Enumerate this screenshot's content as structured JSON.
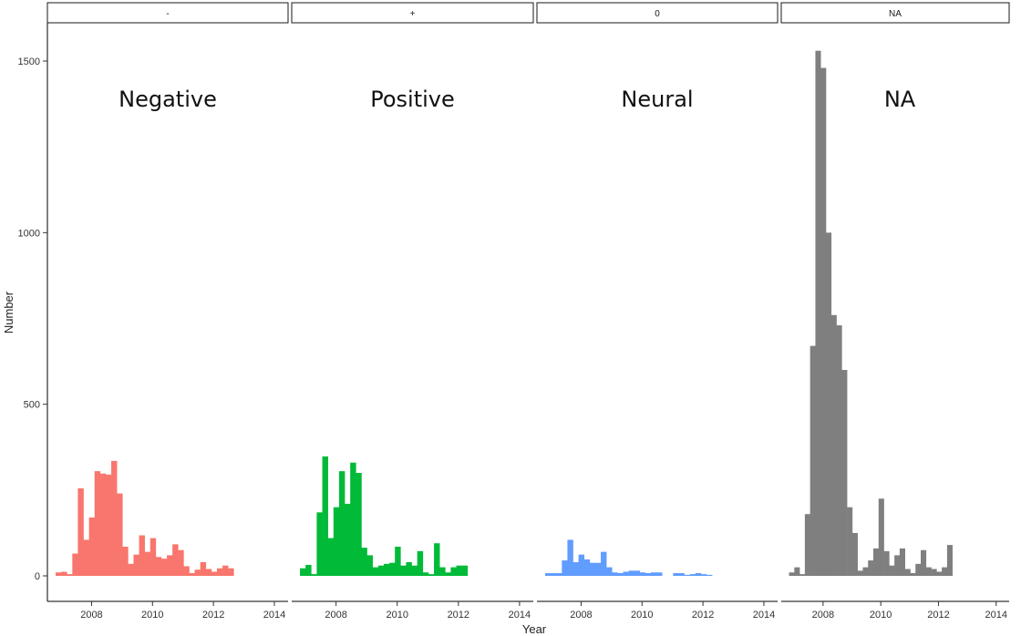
{
  "chart_data": {
    "type": "bar",
    "xlabel": "Year",
    "ylabel": "Number",
    "ylim": [
      0,
      1620
    ],
    "y_ticks": [
      0,
      500,
      1000,
      1500
    ],
    "xlim": [
      2006.55,
      2014.45
    ],
    "x_ticks": [
      2008,
      2010,
      2012,
      2014
    ],
    "bin_start": 2006.82,
    "bin_width": 0.1826,
    "facets": [
      {
        "strip_label": "-",
        "annotation": "Negative",
        "color": "#F8766D",
        "values": [
          10,
          12,
          5,
          65,
          255,
          105,
          170,
          305,
          298,
          295,
          335,
          240,
          85,
          35,
          62,
          118,
          70,
          110,
          55,
          50,
          60,
          92,
          75,
          28,
          8,
          18,
          40,
          20,
          12,
          22,
          30,
          22
        ]
      },
      {
        "strip_label": "+",
        "annotation": "Positive",
        "color": "#00BA38",
        "values": [
          22,
          32,
          5,
          185,
          348,
          110,
          200,
          305,
          210,
          330,
          300,
          82,
          60,
          25,
          30,
          35,
          38,
          85,
          30,
          40,
          30,
          72,
          10,
          5,
          95,
          25,
          10,
          25,
          30,
          30
        ]
      },
      {
        "strip_label": "0",
        "annotation": "Neural",
        "color": "#619CFF",
        "values": [
          8,
          8,
          8,
          45,
          105,
          40,
          62,
          48,
          38,
          38,
          70,
          25,
          10,
          8,
          12,
          15,
          15,
          10,
          8,
          10,
          10,
          0,
          0,
          8,
          8,
          3,
          5,
          8,
          5,
          3
        ]
      },
      {
        "strip_label": "NA",
        "annotation": "NA",
        "color": "#7F7F7F",
        "values": [
          10,
          25,
          5,
          180,
          670,
          1530,
          1480,
          1000,
          760,
          730,
          600,
          200,
          125,
          15,
          25,
          45,
          80,
          225,
          72,
          30,
          60,
          80,
          20,
          8,
          35,
          75,
          25,
          20,
          12,
          25,
          90
        ]
      }
    ]
  }
}
